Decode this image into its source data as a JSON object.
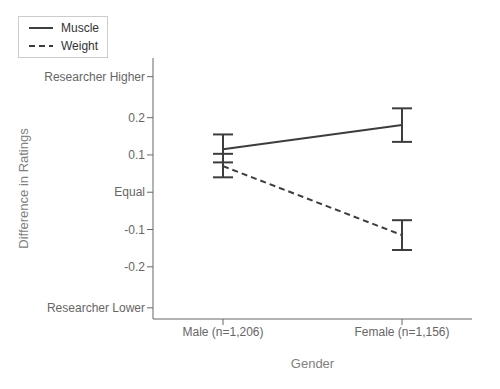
{
  "chart_data": {
    "type": "line",
    "xlabel": "Gender",
    "ylabel": "Difference in Ratings",
    "categories": [
      "Male (n=1,206)",
      "Female (n=1,156)"
    ],
    "series": [
      {
        "name": "Muscle",
        "color": "#3d3d3d",
        "line_style": "solid",
        "values": [
          0.115,
          0.18
        ],
        "ci_lower": [
          0.08,
          0.135
        ],
        "ci_upper": [
          0.155,
          0.225
        ]
      },
      {
        "name": "Weight",
        "color": "#3d3d3d",
        "line_style": "dashed",
        "values": [
          0.07,
          -0.115
        ],
        "ci_lower": [
          0.04,
          -0.155
        ],
        "ci_upper": [
          0.103,
          -0.075
        ]
      }
    ],
    "ylim": [
      -0.34,
      0.36
    ],
    "yticks": [
      {
        "value": -0.31,
        "label": "Researcher Lower"
      },
      -0.2,
      -0.1,
      {
        "value": 0,
        "label": "Equal"
      },
      0.1,
      0.2,
      {
        "value": 0.31,
        "label": "Researcher Higher"
      }
    ],
    "grid": false,
    "legend": "upper right"
  }
}
